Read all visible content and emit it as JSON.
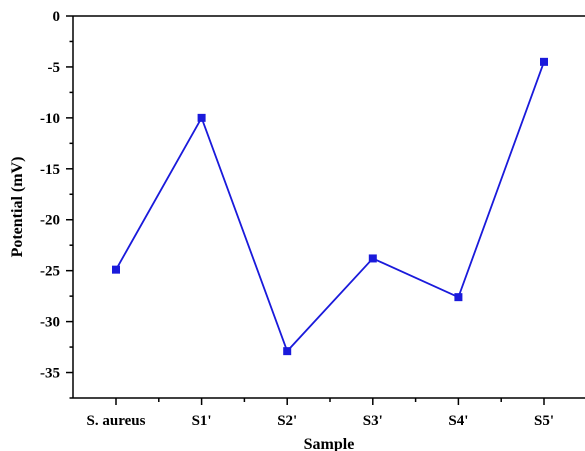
{
  "chart_data": {
    "type": "line",
    "categories": [
      "S. aureus",
      "S1'",
      "S2'",
      "S3'",
      "S4'",
      "S5'"
    ],
    "series": [
      {
        "values": [
          -24.9,
          -10.0,
          -32.9,
          -23.8,
          -27.6,
          -4.5
        ],
        "color": "#1a1adb",
        "marker": "square"
      }
    ],
    "xlabel": "Sample",
    "ylabel": "Potential (mV)",
    "ylim": [
      -37.5,
      0
    ],
    "yticks": [
      0,
      -5,
      -10,
      -15,
      -20,
      -25,
      -30,
      -35
    ],
    "yticks_minor_step": 2.5,
    "grid": false,
    "legend": "none"
  }
}
